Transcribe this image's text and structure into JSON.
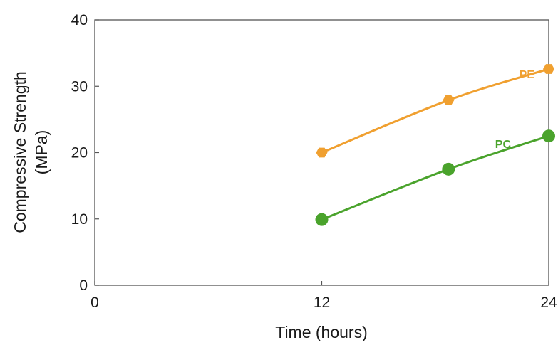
{
  "chart_data": {
    "type": "line",
    "xlabel": "Time (hours)",
    "ylabel_lines": [
      "Compressive Strength",
      "(MPa)"
    ],
    "xlim": [
      0,
      24
    ],
    "ylim": [
      0,
      40
    ],
    "xticks": [
      0,
      12,
      24
    ],
    "yticks": [
      0,
      10,
      20,
      30,
      40
    ],
    "grid": false,
    "series": [
      {
        "name": "PE",
        "color": "#f0a030",
        "marker": "hexagon",
        "x": [
          12,
          18.7,
          24
        ],
        "y": [
          20.0,
          27.9,
          32.6
        ]
      },
      {
        "name": "PC",
        "color": "#4aa32c",
        "marker": "circle",
        "x": [
          12,
          18.7,
          24
        ],
        "y": [
          9.9,
          17.5,
          22.5
        ]
      }
    ]
  }
}
